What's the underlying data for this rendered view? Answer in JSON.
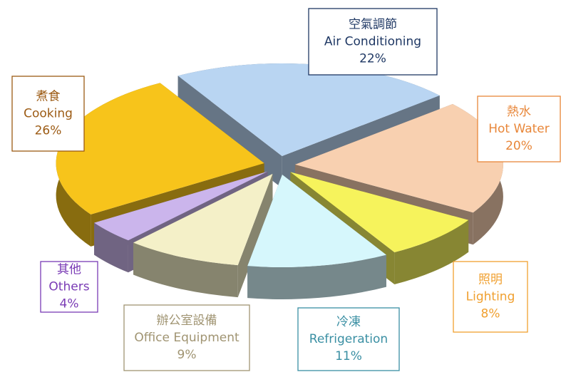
{
  "chart_data": {
    "type": "pie",
    "categories_zh": [
      "空氣調節",
      "熱水",
      "照明",
      "冷凍",
      "辦公室設備",
      "其他",
      "煮食"
    ],
    "categories": [
      "Air Conditioning",
      "Hot Water",
      "Lighting",
      "Refrigeration",
      "Office Equipment",
      "Others",
      "Cooking"
    ],
    "values": [
      22,
      20,
      8,
      11,
      9,
      4,
      26
    ],
    "value_labels": [
      "22%",
      "20%",
      "8%",
      "11%",
      "9%",
      "4%",
      "26%"
    ],
    "colors": [
      "#b9d5f2",
      "#f8d0b0",
      "#f6f35c",
      "#d6f7fc",
      "#f4f0c8",
      "#cbb5ec",
      "#f7c41b"
    ],
    "label_colors": [
      "#1f3864",
      "#e8873a",
      "#f0a030",
      "#3a8fa3",
      "#a09472",
      "#7a3bb5",
      "#9c5b14"
    ]
  }
}
